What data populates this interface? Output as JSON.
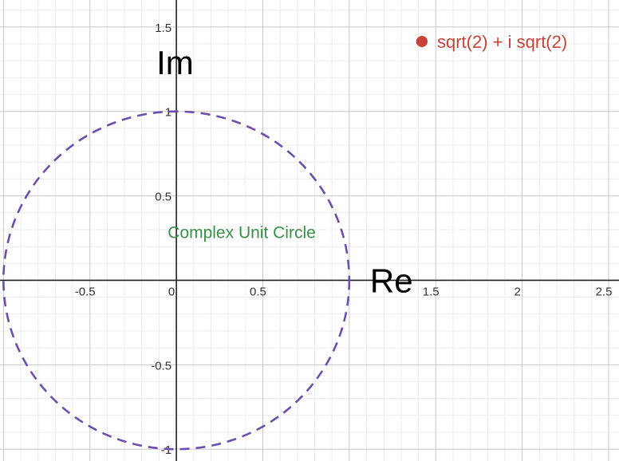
{
  "chart_data": {
    "type": "scatter",
    "xlabel": "Re",
    "ylabel": "Im",
    "xlim": [
      -1.02,
      2.56
    ],
    "ylim": [
      -1.07,
      1.66
    ],
    "grid": true,
    "legend_position": "top-right",
    "x_ticks": [
      {
        "value": -1,
        "label": "-"
      },
      {
        "value": -0.5,
        "label": "-0.5"
      },
      {
        "value": 0,
        "label": "0"
      },
      {
        "value": 0.5,
        "label": "0.5"
      },
      {
        "value": 1.5,
        "label": "1.5"
      },
      {
        "value": 2,
        "label": "2"
      },
      {
        "value": 2.5,
        "label": "2.5"
      }
    ],
    "y_ticks": [
      {
        "value": 1.5,
        "label": "1.5"
      },
      {
        "value": 1,
        "label": "1"
      },
      {
        "value": 0.5,
        "label": "0.5"
      },
      {
        "value": -0.5,
        "label": "-0.5"
      },
      {
        "value": -1,
        "label": "-1"
      }
    ],
    "unit_circle": {
      "center": [
        0,
        0
      ],
      "radius": 1,
      "color": "#6a4fb0",
      "label": "Complex Unit Circle",
      "label_anchor": [
        -0.05,
        0.25
      ],
      "label_color": "#3a8f4a"
    },
    "series": [
      {
        "name": "sqrt(2) + i sqrt(2)",
        "color": "#c9423a",
        "points": [
          {
            "x": 1.414,
            "y": 1.414
          }
        ]
      }
    ]
  }
}
